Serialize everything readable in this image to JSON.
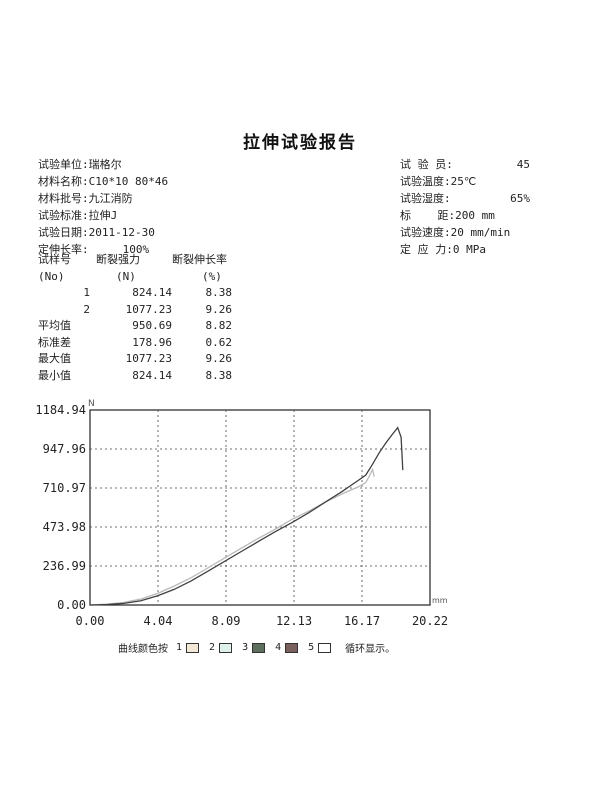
{
  "report": {
    "title": "拉伸试验报告",
    "left": [
      {
        "k": "试验单位:",
        "v": "瑞格尔"
      },
      {
        "k": "材料名称:",
        "v": "C10*10 80*46"
      },
      {
        "k": "材料批号:",
        "v": "九江消防"
      },
      {
        "k": "试验标准:",
        "v": "拉伸J"
      },
      {
        "k": "试验日期:",
        "v": "2011-12-30"
      },
      {
        "k": "定伸长率:",
        "v": "100%"
      }
    ],
    "right": [
      {
        "k": "试 验 员:",
        "v": "45"
      },
      {
        "k": "试验温度:",
        "v": "25℃"
      },
      {
        "k": "试验湿度:",
        "v": "65%"
      },
      {
        "k": "标    距:",
        "v": "200 mm"
      },
      {
        "k": "试验速度:",
        "v": "20 mm/min"
      },
      {
        "k": "定 应 力:",
        "v": "0 MPa"
      }
    ]
  },
  "stats": {
    "header1": [
      "试样号",
      "断裂强力",
      "断裂伸长率"
    ],
    "header2": [
      "(No)",
      "(N)",
      "(%)"
    ],
    "rows": [
      [
        "1",
        "824.14",
        "8.38"
      ],
      [
        "2",
        "1077.23",
        "9.26"
      ],
      [
        "平均值",
        "950.69",
        "8.82"
      ],
      [
        "标准差",
        "178.96",
        "0.62"
      ],
      [
        "最大值",
        "1077.23",
        "9.26"
      ],
      [
        "最小值",
        "824.14",
        "8.38"
      ]
    ]
  },
  "chart_data": {
    "type": "line",
    "xlabel": "mm",
    "ylabel": "N",
    "xlim": [
      0,
      20.22
    ],
    "ylim": [
      0,
      1184.94
    ],
    "x_ticks": [
      "0.00",
      "4.04",
      "8.09",
      "12.13",
      "16.17",
      "20.22"
    ],
    "y_ticks": [
      "0.00",
      "236.99",
      "473.98",
      "710.97",
      "947.96",
      "1184.94"
    ],
    "grid": true,
    "series": [
      {
        "name": "1",
        "x": [
          0,
          1,
          2,
          3,
          4,
          5,
          6,
          7,
          8,
          9,
          10,
          11,
          12,
          13,
          14,
          15,
          16,
          16.4,
          16.6,
          16.8,
          16.9
        ],
        "y": [
          0,
          5,
          15,
          35,
          70,
          115,
          165,
          225,
          285,
          345,
          405,
          460,
          520,
          570,
          625,
          675,
          720,
          745,
          780,
          824.14,
          780
        ],
        "color": "#b9b9b9"
      },
      {
        "name": "2",
        "x": [
          0,
          1,
          2,
          3,
          4,
          5,
          6,
          7,
          8,
          9,
          10,
          11,
          12,
          13,
          14,
          15,
          16,
          16.4,
          16.8,
          17.2,
          17.6,
          18.0,
          18.3,
          18.5,
          18.6
        ],
        "y": [
          0,
          3,
          10,
          25,
          55,
          95,
          145,
          205,
          265,
          325,
          385,
          445,
          500,
          560,
          625,
          690,
          760,
          790,
          855,
          925,
          985,
          1040,
          1077.23,
          1020,
          820
        ],
        "color": "#404040"
      }
    ]
  },
  "legend": {
    "label": "曲线颜色按",
    "items": [
      {
        "n": "1",
        "color": "#f3e7d6"
      },
      {
        "n": "2",
        "color": "#dff0ea"
      },
      {
        "n": "3",
        "color": "#5f6f5f"
      },
      {
        "n": "4",
        "color": "#7a5f5f"
      },
      {
        "n": "5",
        "color": "#ffffff"
      }
    ],
    "tail": "循环显示。"
  }
}
